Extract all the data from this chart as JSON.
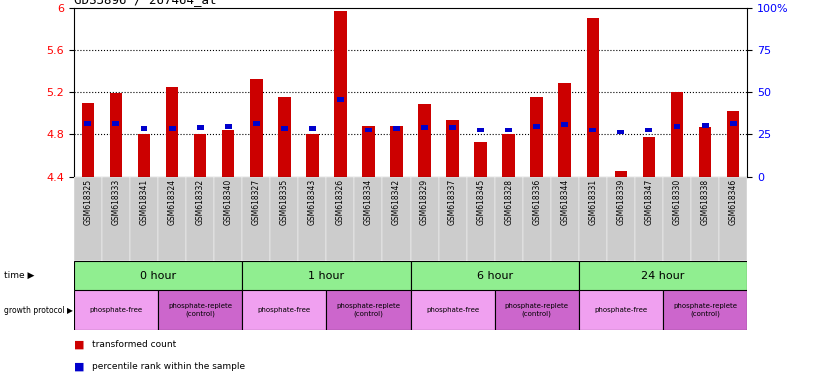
{
  "title": "GDS3896 / 267464_at",
  "samples": [
    "GSM618325",
    "GSM618333",
    "GSM618341",
    "GSM618324",
    "GSM618332",
    "GSM618340",
    "GSM618327",
    "GSM618335",
    "GSM618343",
    "GSM618326",
    "GSM618334",
    "GSM618342",
    "GSM618329",
    "GSM618337",
    "GSM618345",
    "GSM618328",
    "GSM618336",
    "GSM618344",
    "GSM618331",
    "GSM618339",
    "GSM618347",
    "GSM618330",
    "GSM618338",
    "GSM618346"
  ],
  "red_values": [
    5.1,
    5.19,
    4.8,
    5.25,
    4.8,
    4.84,
    5.32,
    5.15,
    4.8,
    5.97,
    4.88,
    4.88,
    5.09,
    4.94,
    4.73,
    4.8,
    5.15,
    5.29,
    5.9,
    4.45,
    4.78,
    5.2,
    4.87,
    5.02
  ],
  "blue_values": [
    4.88,
    4.88,
    4.83,
    4.83,
    4.84,
    4.85,
    4.88,
    4.83,
    4.83,
    5.11,
    4.82,
    4.83,
    4.84,
    4.84,
    4.82,
    4.82,
    4.85,
    4.87,
    4.82,
    4.8,
    4.82,
    4.85,
    4.86,
    4.88
  ],
  "ylim_left": [
    4.4,
    6.0
  ],
  "yticks_left": [
    4.4,
    4.8,
    5.2,
    5.6,
    6.0
  ],
  "ytick_labels_left": [
    "4.4",
    "4.8",
    "5.2",
    "5.6",
    "6"
  ],
  "yticks_right": [
    0,
    25,
    50,
    75,
    100
  ],
  "ytick_labels_right": [
    "0",
    "25",
    "50",
    "75",
    "100%"
  ],
  "gridlines": [
    4.8,
    5.2,
    5.6
  ],
  "time_groups": [
    {
      "label": "0 hour",
      "start": 0,
      "end": 6
    },
    {
      "label": "1 hour",
      "start": 6,
      "end": 12
    },
    {
      "label": "6 hour",
      "start": 12,
      "end": 18
    },
    {
      "label": "24 hour",
      "start": 18,
      "end": 24
    }
  ],
  "protocol_groups": [
    {
      "label": "phosphate-free",
      "start": 0,
      "end": 3,
      "color": "#f0a0f0"
    },
    {
      "label": "phosphate-replete\n(control)",
      "start": 3,
      "end": 6,
      "color": "#cc66cc"
    },
    {
      "label": "phosphate-free",
      "start": 6,
      "end": 9,
      "color": "#f0a0f0"
    },
    {
      "label": "phosphate-replete\n(control)",
      "start": 9,
      "end": 12,
      "color": "#cc66cc"
    },
    {
      "label": "phosphate-free",
      "start": 12,
      "end": 15,
      "color": "#f0a0f0"
    },
    {
      "label": "phosphate-replete\n(control)",
      "start": 15,
      "end": 18,
      "color": "#cc66cc"
    },
    {
      "label": "phosphate-free",
      "start": 18,
      "end": 21,
      "color": "#f0a0f0"
    },
    {
      "label": "phosphate-replete\n(control)",
      "start": 21,
      "end": 24,
      "color": "#cc66cc"
    }
  ],
  "bar_color": "#cc0000",
  "blue_color": "#0000cc",
  "bg_color": "#ffffff",
  "time_bg_color": "#90ee90"
}
